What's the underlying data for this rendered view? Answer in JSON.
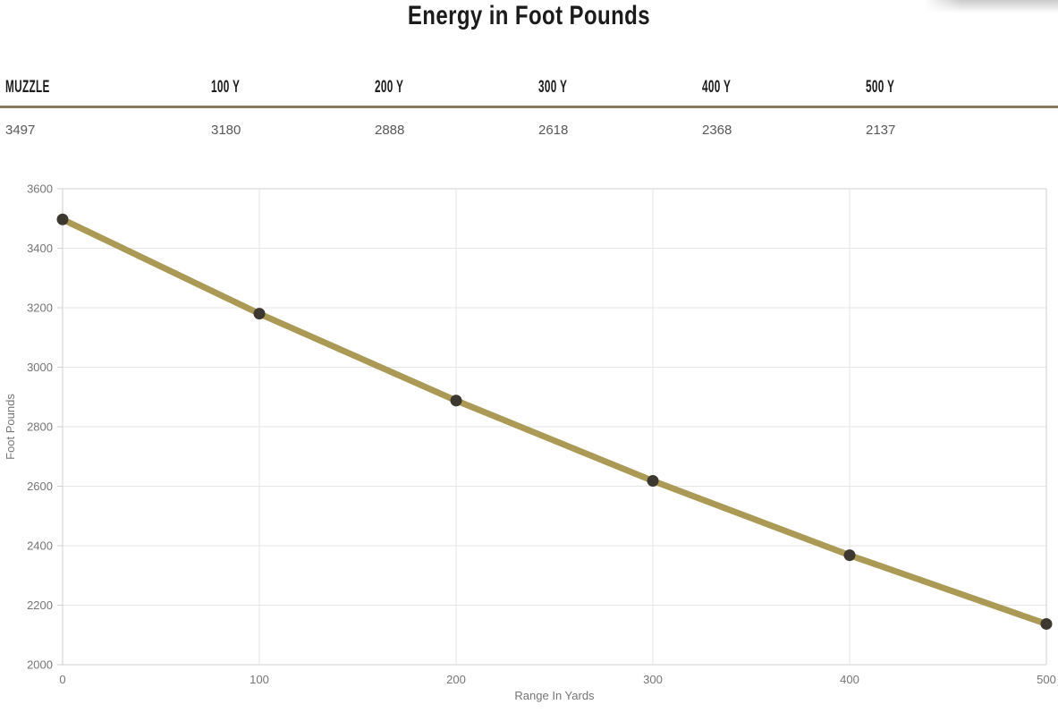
{
  "page": {
    "title": "Energy in Foot Pounds"
  },
  "table": {
    "headers": [
      "MUZZLE",
      "100 Y",
      "200 Y",
      "300 Y",
      "400 Y",
      "500 Y"
    ],
    "values": [
      "3497",
      "3180",
      "2888",
      "2618",
      "2368",
      "2137"
    ]
  },
  "chart_data": {
    "type": "line",
    "title": "Energy in Foot Pounds",
    "x": [
      0,
      100,
      200,
      300,
      400,
      500
    ],
    "series": [
      {
        "name": "Energy",
        "values": [
          3497,
          3180,
          2888,
          2618,
          2368,
          2137
        ]
      }
    ],
    "xlabel": "Range In Yards",
    "ylabel": "Foot Pounds",
    "xlim": [
      0,
      500
    ],
    "ylim": [
      2000,
      3600
    ],
    "x_ticks": [
      0,
      100,
      200,
      300,
      400,
      500
    ],
    "y_ticks": [
      2000,
      2200,
      2400,
      2600,
      2800,
      3000,
      3200,
      3400,
      3600
    ],
    "grid": true,
    "legend_position": "none",
    "line_color": "#ab9a55",
    "point_color": "#3d382f",
    "grid_color": "#e6e6e6",
    "axis_color": "#cfcfcf",
    "label_color": "#757575"
  },
  "colors": {
    "separator": "#87795b",
    "header_text": "#1d1d1d",
    "value_text": "#58585a",
    "title_text": "#1b1b1b"
  }
}
